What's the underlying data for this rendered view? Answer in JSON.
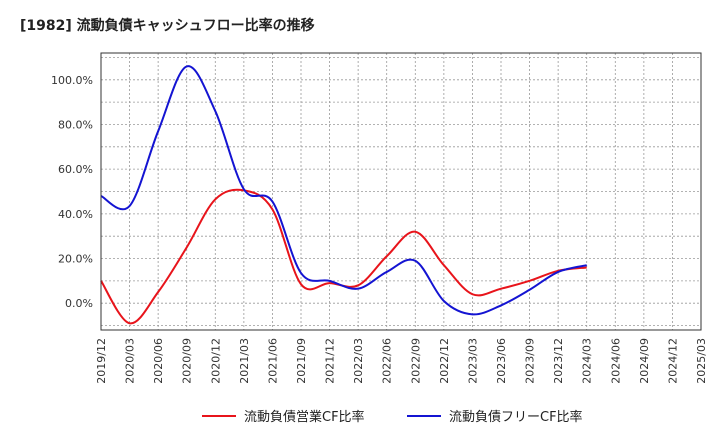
{
  "chart_data": {
    "type": "line",
    "title": "[1982]  流動負債キャッシュフロー比率の推移",
    "xlabel": "",
    "ylabel": "",
    "x": [
      "2019/12",
      "2020/03",
      "2020/06",
      "2020/09",
      "2020/12",
      "2021/03",
      "2021/06",
      "2021/09",
      "2021/12",
      "2022/03",
      "2022/06",
      "2022/09",
      "2022/12",
      "2023/03",
      "2023/06",
      "2023/09",
      "2023/12",
      "2024/03",
      "2024/06",
      "2024/09",
      "2024/12",
      "2025/03"
    ],
    "ylim": [
      -12,
      112
    ],
    "yticks": [
      0,
      20,
      40,
      60,
      80,
      100
    ],
    "ytick_labels": [
      "0.0%",
      "20.0%",
      "40.0%",
      "60.0%",
      "80.0%",
      "100.0%"
    ],
    "grid": true,
    "legend_position": "bottom",
    "series": [
      {
        "name": "流動負債営業CF比率",
        "color": "#e8141b",
        "values": [
          10.0,
          -9.0,
          5.0,
          25.0,
          46.5,
          50.5,
          42.0,
          8.5,
          9.0,
          8.0,
          21.0,
          32.0,
          17.0,
          4.0,
          6.5,
          10.0,
          14.5,
          16.0,
          null,
          null,
          null,
          null
        ]
      },
      {
        "name": "流動負債フリーCF比率",
        "color": "#1414d2",
        "values": [
          48.0,
          43.5,
          77.0,
          106.0,
          86.0,
          51.0,
          45.5,
          13.5,
          10.0,
          6.5,
          14.0,
          19.0,
          1.0,
          -5.0,
          -1.0,
          6.0,
          14.0,
          17.0,
          null,
          null,
          null,
          null
        ]
      }
    ]
  }
}
